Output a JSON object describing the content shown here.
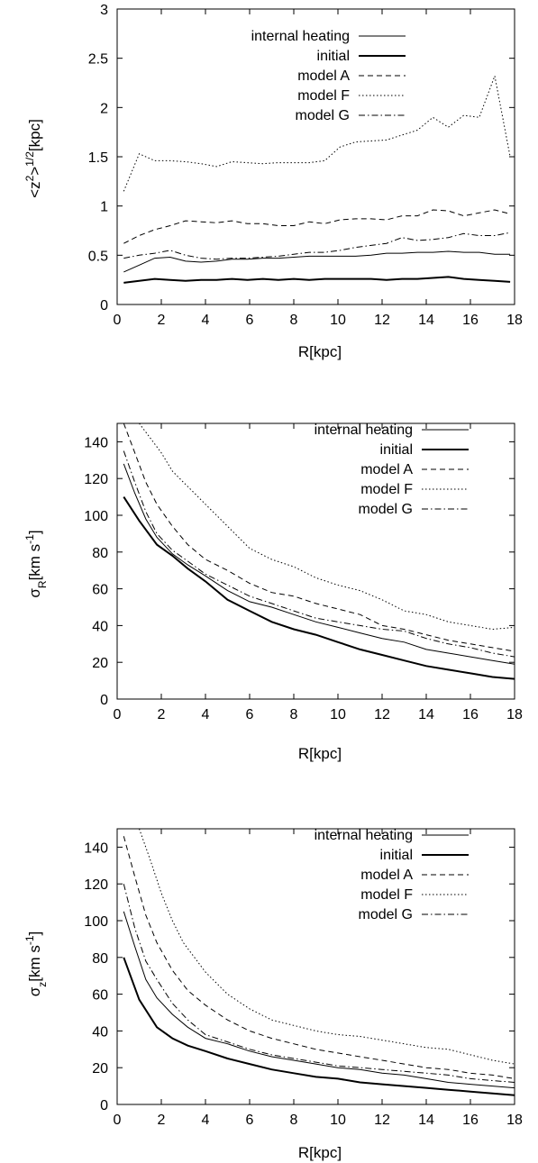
{
  "chart_data": [
    {
      "type": "line",
      "ylabel_base": "<z",
      "ylabel_sup1": "2",
      "ylabel_mid": ">",
      "ylabel_sup2": "1/2",
      "ylabel_unit": "[kpc]",
      "xlabel": "R[kpc]",
      "xlim": [
        0,
        18
      ],
      "ylim": [
        0,
        3
      ],
      "xticks": [
        0,
        2,
        4,
        6,
        8,
        10,
        12,
        14,
        16,
        18
      ],
      "yticks": [
        0,
        0.5,
        1,
        1.5,
        2,
        2.5,
        3
      ],
      "ytick_labels": [
        "0",
        "0.5",
        "1",
        "1.5",
        "2",
        "2.5",
        "3"
      ],
      "legend_position": "top-left",
      "series": [
        {
          "name": "internal heating",
          "style": "thin",
          "x": [
            0.3,
            1,
            1.7,
            2.4,
            3.1,
            3.8,
            4.5,
            5.2,
            5.9,
            6.6,
            7.3,
            8,
            8.7,
            9.4,
            10.1,
            10.8,
            11.5,
            12.2,
            12.9,
            13.6,
            14.3,
            15,
            15.7,
            16.4,
            17.1,
            17.8
          ],
          "y": [
            0.33,
            0.4,
            0.47,
            0.48,
            0.44,
            0.43,
            0.44,
            0.46,
            0.46,
            0.47,
            0.47,
            0.48,
            0.49,
            0.49,
            0.49,
            0.49,
            0.5,
            0.52,
            0.52,
            0.53,
            0.53,
            0.54,
            0.53,
            0.53,
            0.51,
            0.51
          ]
        },
        {
          "name": "initial",
          "style": "thick",
          "x": [
            0.3,
            1,
            1.7,
            2.4,
            3.1,
            3.8,
            4.5,
            5.2,
            5.9,
            6.6,
            7.3,
            8,
            8.7,
            9.4,
            10.1,
            10.8,
            11.5,
            12.2,
            12.9,
            13.6,
            14.3,
            15,
            15.7,
            16.4,
            17.1,
            17.8
          ],
          "y": [
            0.22,
            0.24,
            0.26,
            0.25,
            0.24,
            0.25,
            0.25,
            0.26,
            0.25,
            0.26,
            0.25,
            0.26,
            0.25,
            0.26,
            0.26,
            0.26,
            0.26,
            0.25,
            0.26,
            0.26,
            0.27,
            0.28,
            0.26,
            0.25,
            0.24,
            0.23
          ]
        },
        {
          "name": "model A",
          "style": "dashed",
          "x": [
            0.3,
            1,
            1.7,
            2.4,
            3.1,
            3.8,
            4.5,
            5.2,
            5.9,
            6.6,
            7.3,
            8,
            8.7,
            9.4,
            10.1,
            10.8,
            11.5,
            12.2,
            12.9,
            13.6,
            14.3,
            15,
            15.7,
            16.4,
            17.1,
            17.8
          ],
          "y": [
            0.62,
            0.7,
            0.76,
            0.8,
            0.85,
            0.84,
            0.83,
            0.85,
            0.82,
            0.82,
            0.8,
            0.8,
            0.84,
            0.82,
            0.86,
            0.87,
            0.87,
            0.86,
            0.9,
            0.9,
            0.96,
            0.95,
            0.9,
            0.93,
            0.96,
            0.92
          ]
        },
        {
          "name": "model F",
          "style": "dotted",
          "x": [
            0.3,
            1,
            1.7,
            2.4,
            3.1,
            3.8,
            4.5,
            5.2,
            5.9,
            6.6,
            7.3,
            8,
            8.7,
            9.4,
            10.1,
            10.8,
            11.5,
            12.2,
            12.9,
            13.6,
            14.3,
            15,
            15.7,
            16.4,
            17.1,
            17.8
          ],
          "y": [
            1.15,
            1.53,
            1.46,
            1.46,
            1.45,
            1.43,
            1.4,
            1.45,
            1.44,
            1.43,
            1.44,
            1.44,
            1.44,
            1.46,
            1.6,
            1.65,
            1.66,
            1.67,
            1.72,
            1.77,
            1.9,
            1.8,
            1.92,
            1.9,
            2.32,
            1.5
          ]
        },
        {
          "name": "model G",
          "style": "dashdot",
          "x": [
            0.3,
            1,
            1.7,
            2.4,
            3.1,
            3.8,
            4.5,
            5.2,
            5.9,
            6.6,
            7.3,
            8,
            8.7,
            9.4,
            10.1,
            10.8,
            11.5,
            12.2,
            12.9,
            13.6,
            14.3,
            15,
            15.7,
            16.4,
            17.1,
            17.8
          ],
          "y": [
            0.47,
            0.5,
            0.52,
            0.55,
            0.5,
            0.47,
            0.46,
            0.47,
            0.47,
            0.48,
            0.49,
            0.51,
            0.53,
            0.53,
            0.55,
            0.58,
            0.6,
            0.62,
            0.68,
            0.65,
            0.66,
            0.68,
            0.72,
            0.7,
            0.7,
            0.73
          ]
        }
      ]
    },
    {
      "type": "line",
      "ylabel_base": "σ",
      "ylabel_sub": "R",
      "ylabel_unit_pre": "[km s",
      "ylabel_sup": "-1",
      "ylabel_unit_post": "]",
      "xlabel": "R[kpc]",
      "xlim": [
        0,
        18
      ],
      "ylim": [
        0,
        150
      ],
      "xticks": [
        0,
        2,
        4,
        6,
        8,
        10,
        12,
        14,
        16,
        18
      ],
      "yticks": [
        0,
        20,
        40,
        60,
        80,
        100,
        120,
        140
      ],
      "ytick_labels": [
        "0",
        "20",
        "40",
        "60",
        "80",
        "100",
        "120",
        "140"
      ],
      "legend_position": "top-right",
      "series": [
        {
          "name": "internal heating",
          "style": "thin",
          "x": [
            0.3,
            0.8,
            1.3,
            1.8,
            2.5,
            3.2,
            4,
            5,
            6,
            7,
            8,
            9,
            10,
            11,
            12,
            13,
            14,
            15,
            16,
            17,
            18
          ],
          "y": [
            128,
            112,
            98,
            88,
            79,
            73,
            67,
            59,
            53,
            50,
            46,
            42,
            39,
            36,
            33,
            31,
            27,
            25,
            23,
            21,
            19
          ]
        },
        {
          "name": "initial",
          "style": "thick",
          "x": [
            0.3,
            1,
            1.8,
            2.5,
            3.2,
            4,
            5,
            6,
            7,
            8,
            9,
            10,
            11,
            12,
            13,
            14,
            15,
            16,
            17,
            18
          ],
          "y": [
            110,
            97,
            84,
            78,
            71,
            64,
            54,
            48,
            42,
            38,
            35,
            31,
            27,
            24,
            21,
            18,
            16,
            14,
            12,
            11
          ]
        },
        {
          "name": "model A",
          "style": "dashed",
          "x": [
            0.3,
            0.8,
            1.3,
            1.8,
            2.5,
            3.2,
            4,
            5,
            6,
            7,
            8,
            9,
            10,
            11,
            12,
            13,
            14,
            15,
            16,
            17,
            18
          ],
          "y": [
            150,
            134,
            118,
            106,
            94,
            84,
            76,
            70,
            63,
            58,
            56,
            52,
            49,
            46,
            40,
            38,
            35,
            32,
            30,
            28,
            26
          ]
        },
        {
          "name": "model F",
          "style": "dotted",
          "x": [
            1,
            1.5,
            2,
            2.5,
            3,
            3.5,
            4,
            5,
            6,
            7,
            8,
            9,
            10,
            11,
            12,
            13,
            14,
            15,
            16,
            17,
            18
          ],
          "y": [
            150,
            142,
            134,
            124,
            118,
            112,
            106,
            94,
            82,
            76,
            72,
            66,
            62,
            59,
            54,
            48,
            46,
            42,
            40,
            38,
            39
          ]
        },
        {
          "name": "model G",
          "style": "dashdot",
          "x": [
            0.3,
            0.8,
            1.3,
            1.8,
            2.5,
            3.2,
            4,
            5,
            6,
            7,
            8,
            9,
            10,
            11,
            12,
            13,
            14,
            15,
            16,
            17,
            18
          ],
          "y": [
            135,
            118,
            102,
            90,
            81,
            75,
            68,
            62,
            56,
            52,
            48,
            44,
            42,
            40,
            38,
            37,
            33,
            30,
            28,
            25,
            23
          ]
        }
      ]
    },
    {
      "type": "line",
      "ylabel_base": "σ",
      "ylabel_sub": "z",
      "ylabel_unit_pre": "[km s",
      "ylabel_sup": "-1",
      "ylabel_unit_post": "]",
      "xlabel": "R[kpc]",
      "xlim": [
        0,
        18
      ],
      "ylim": [
        0,
        150
      ],
      "xticks": [
        0,
        2,
        4,
        6,
        8,
        10,
        12,
        14,
        16,
        18
      ],
      "yticks": [
        0,
        20,
        40,
        60,
        80,
        100,
        120,
        140
      ],
      "ytick_labels": [
        "0",
        "20",
        "40",
        "60",
        "80",
        "100",
        "120",
        "140"
      ],
      "legend_position": "top-right",
      "series": [
        {
          "name": "internal heating",
          "style": "thin",
          "x": [
            0.3,
            0.8,
            1.3,
            1.8,
            2.5,
            3.2,
            4,
            5,
            6,
            7,
            8,
            9,
            10,
            11,
            12,
            13,
            14,
            15,
            16,
            17,
            18
          ],
          "y": [
            105,
            86,
            68,
            58,
            49,
            42,
            36,
            33,
            29,
            26,
            24,
            22,
            20,
            19,
            17,
            16,
            14,
            12,
            11,
            10,
            9
          ]
        },
        {
          "name": "initial",
          "style": "thick",
          "x": [
            0.3,
            1,
            1.8,
            2.5,
            3.2,
            4,
            5,
            6,
            7,
            8,
            9,
            10,
            11,
            12,
            13,
            14,
            15,
            16,
            17,
            18
          ],
          "y": [
            80,
            57,
            42,
            36,
            32,
            29,
            25,
            22,
            19,
            17,
            15,
            14,
            12,
            11,
            10,
            9,
            8,
            7,
            6,
            5
          ]
        },
        {
          "name": "model A",
          "style": "dashed",
          "x": [
            0.3,
            0.8,
            1.3,
            1.8,
            2.5,
            3.2,
            4,
            5,
            6,
            7,
            8,
            9,
            10,
            11,
            12,
            13,
            14,
            15,
            16,
            17,
            18
          ],
          "y": [
            146,
            124,
            103,
            88,
            73,
            62,
            54,
            46,
            40,
            36,
            33,
            30,
            28,
            26,
            24,
            22,
            20,
            19,
            17,
            16,
            14
          ]
        },
        {
          "name": "model F",
          "style": "dotted",
          "x": [
            1,
            1.5,
            2,
            2.5,
            3,
            3.5,
            4,
            5,
            6,
            7,
            8,
            9,
            10,
            11,
            12,
            13,
            14,
            15,
            16,
            17,
            18
          ],
          "y": [
            150,
            133,
            115,
            100,
            88,
            80,
            72,
            60,
            52,
            46,
            43,
            40,
            38,
            37,
            35,
            33,
            31,
            30,
            27,
            24,
            22
          ]
        },
        {
          "name": "model G",
          "style": "dashdot",
          "x": [
            0.3,
            0.8,
            1.3,
            1.8,
            2.5,
            3.2,
            4,
            5,
            6,
            7,
            8,
            9,
            10,
            11,
            12,
            13,
            14,
            15,
            16,
            17,
            18
          ],
          "y": [
            120,
            96,
            78,
            68,
            55,
            46,
            38,
            34,
            30,
            27,
            25,
            23,
            21,
            20,
            19,
            18,
            17,
            16,
            14,
            13,
            12
          ]
        }
      ]
    }
  ]
}
